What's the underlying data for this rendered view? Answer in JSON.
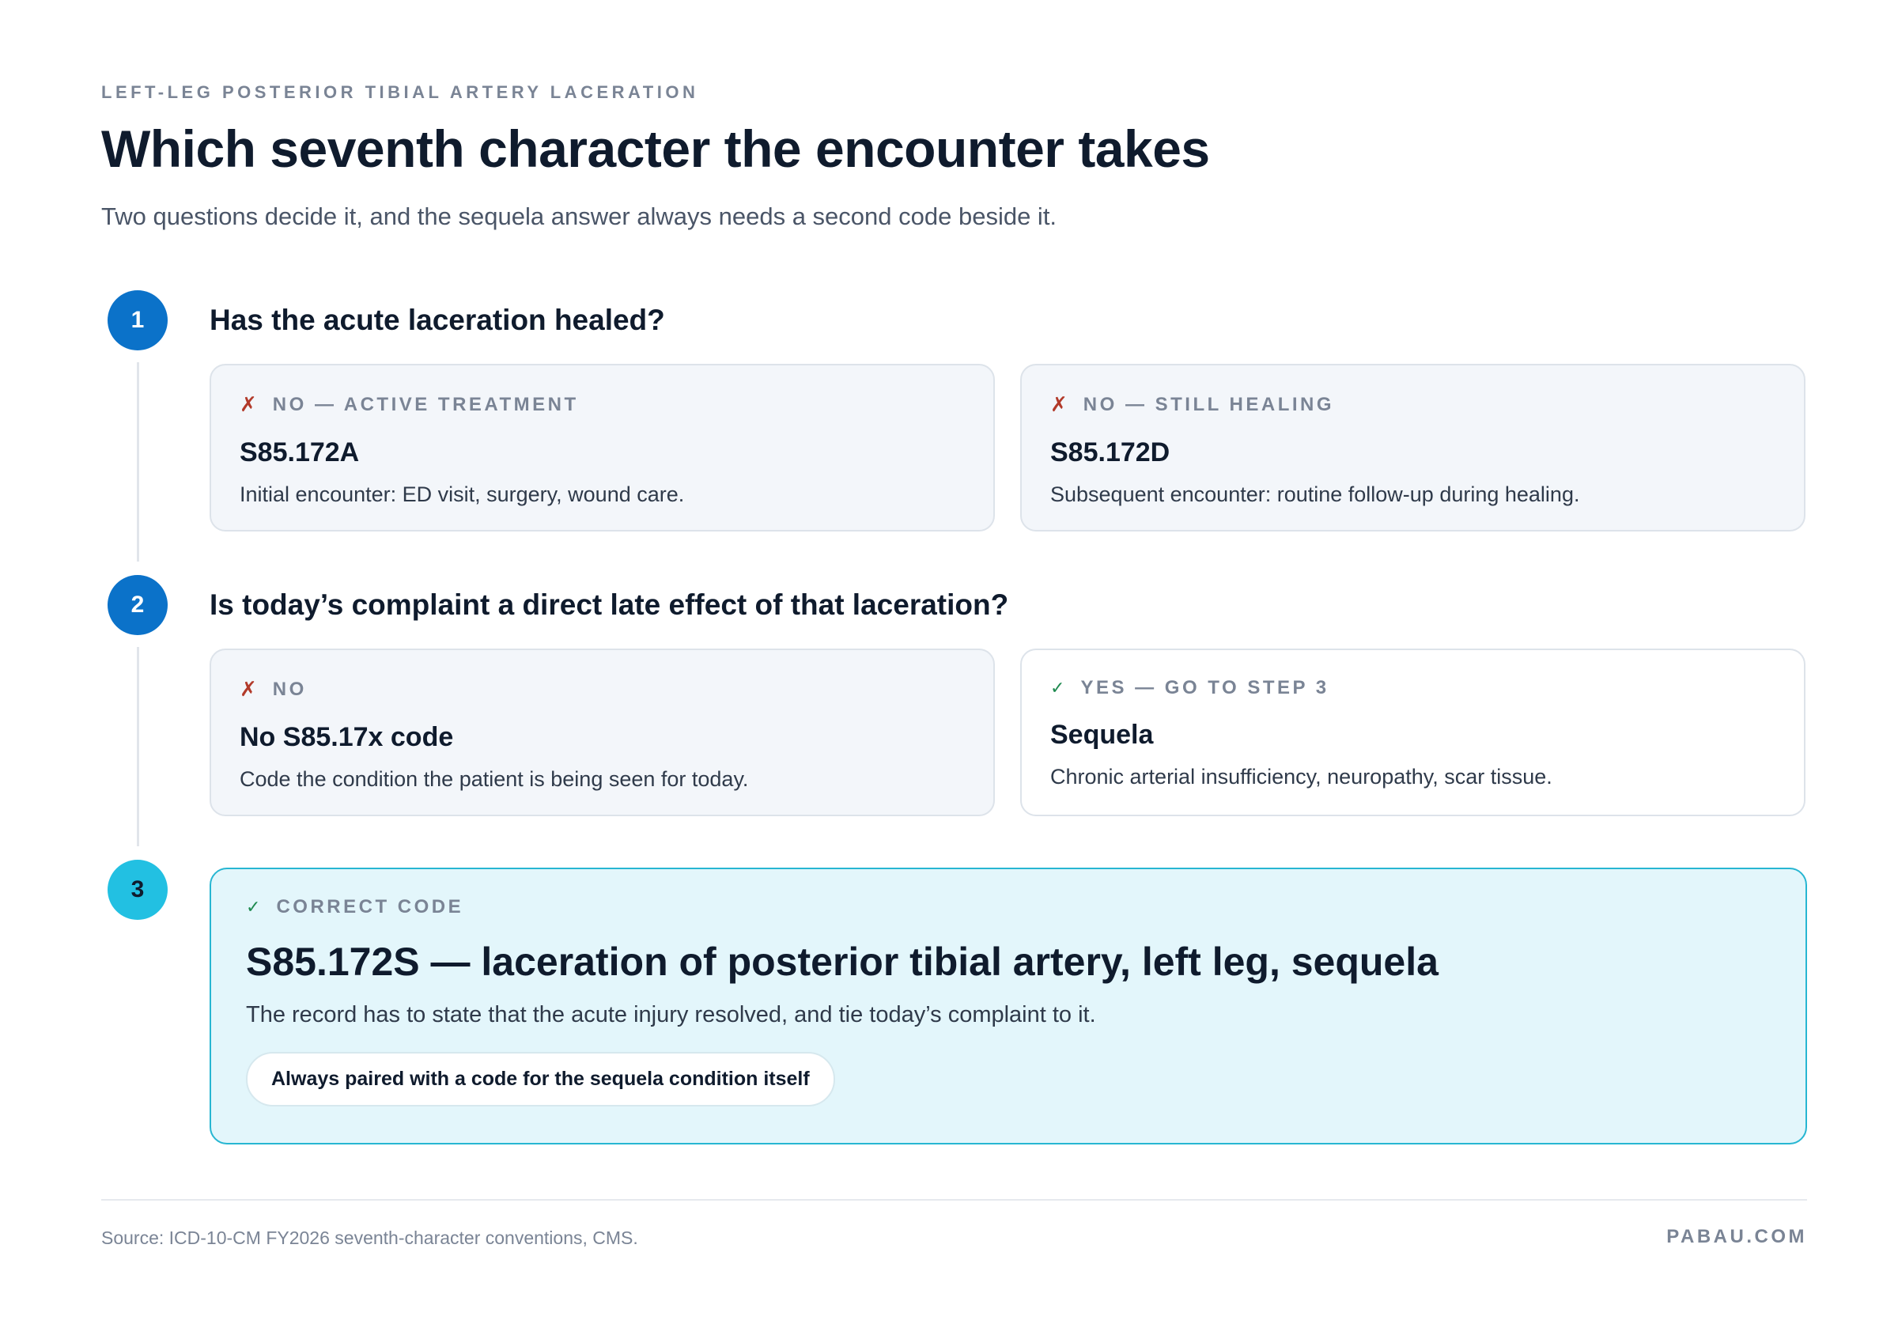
{
  "header": {
    "eyebrow": "LEFT-LEG POSTERIOR TIBIAL ARTERY LACERATION",
    "title": "Which seventh character the encounter takes",
    "subtitle": "Two questions decide it, and the sequela answer always needs a second code beside it."
  },
  "steps": [
    {
      "number": "1",
      "question": "Has the acute laceration healed?",
      "options": [
        {
          "mark": "✗",
          "label": "NO — ACTIVE TREATMENT",
          "code": "S85.172A",
          "desc": "Initial encounter: ED visit, surgery, wound care."
        },
        {
          "mark": "✗",
          "label": "NO — STILL HEALING",
          "code": "S85.172D",
          "desc": "Subsequent encounter: routine follow-up during healing."
        }
      ]
    },
    {
      "number": "2",
      "question": "Is today’s complaint a direct late effect of that laceration?",
      "options": [
        {
          "mark": "✗",
          "label": "NO",
          "code": "No S85.17x code",
          "desc": "Code the condition the patient is being seen for today."
        },
        {
          "mark": "✓",
          "label": "YES — GO TO STEP 3",
          "code": "Sequela",
          "desc": "Chronic arterial insufficiency, neuropathy, scar tissue."
        }
      ]
    },
    {
      "number": "3",
      "result": {
        "mark": "✓",
        "label": "CORRECT CODE",
        "code": "S85.172S — laceration of posterior tibial artery, left leg, sequela",
        "desc": "The record has to state that the acute injury resolved, and tie today’s complaint to it.",
        "pill": "Always paired with a code for the sequela condition itself"
      }
    }
  ],
  "footer": {
    "source": "Source: ICD-10-CM FY2026 seventh-character conventions, CMS.",
    "brand": "PABAU.COM"
  },
  "colors": {
    "step_blue": "#0b72c9",
    "step_cyan": "#22c0e2",
    "no_mark": "#b23a2a",
    "yes_mark": "#1f8a50",
    "result_bg": "#e3f6fb",
    "result_border": "#27b6d2"
  }
}
